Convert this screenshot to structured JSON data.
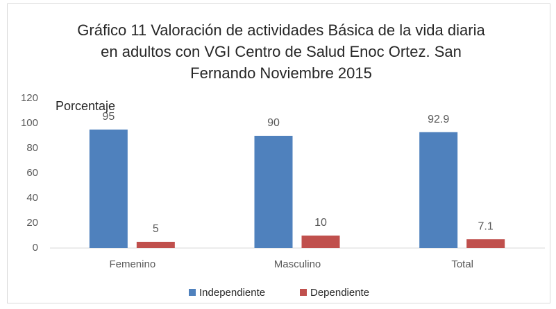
{
  "chart_data": {
    "type": "bar",
    "title": "Gráfico 11 Valoración de actividades Básica de la vida diaria en adultos con VGI Centro de Salud Enoc Ortez. San Fernando Noviembre 2015",
    "y_label": "Porcentaje",
    "categories": [
      "Femenino",
      "Masculino",
      "Total"
    ],
    "series": [
      {
        "name": "Independiente",
        "color": "#4f81bd",
        "values": [
          95,
          90,
          92.9
        ]
      },
      {
        "name": "Dependiente",
        "color": "#c0504d",
        "values": [
          5,
          10,
          7.1
        ]
      }
    ],
    "ylim": [
      0,
      120
    ],
    "yticks": [
      0,
      20,
      40,
      60,
      80,
      100,
      120
    ],
    "grid": false,
    "legend": "bottom"
  }
}
